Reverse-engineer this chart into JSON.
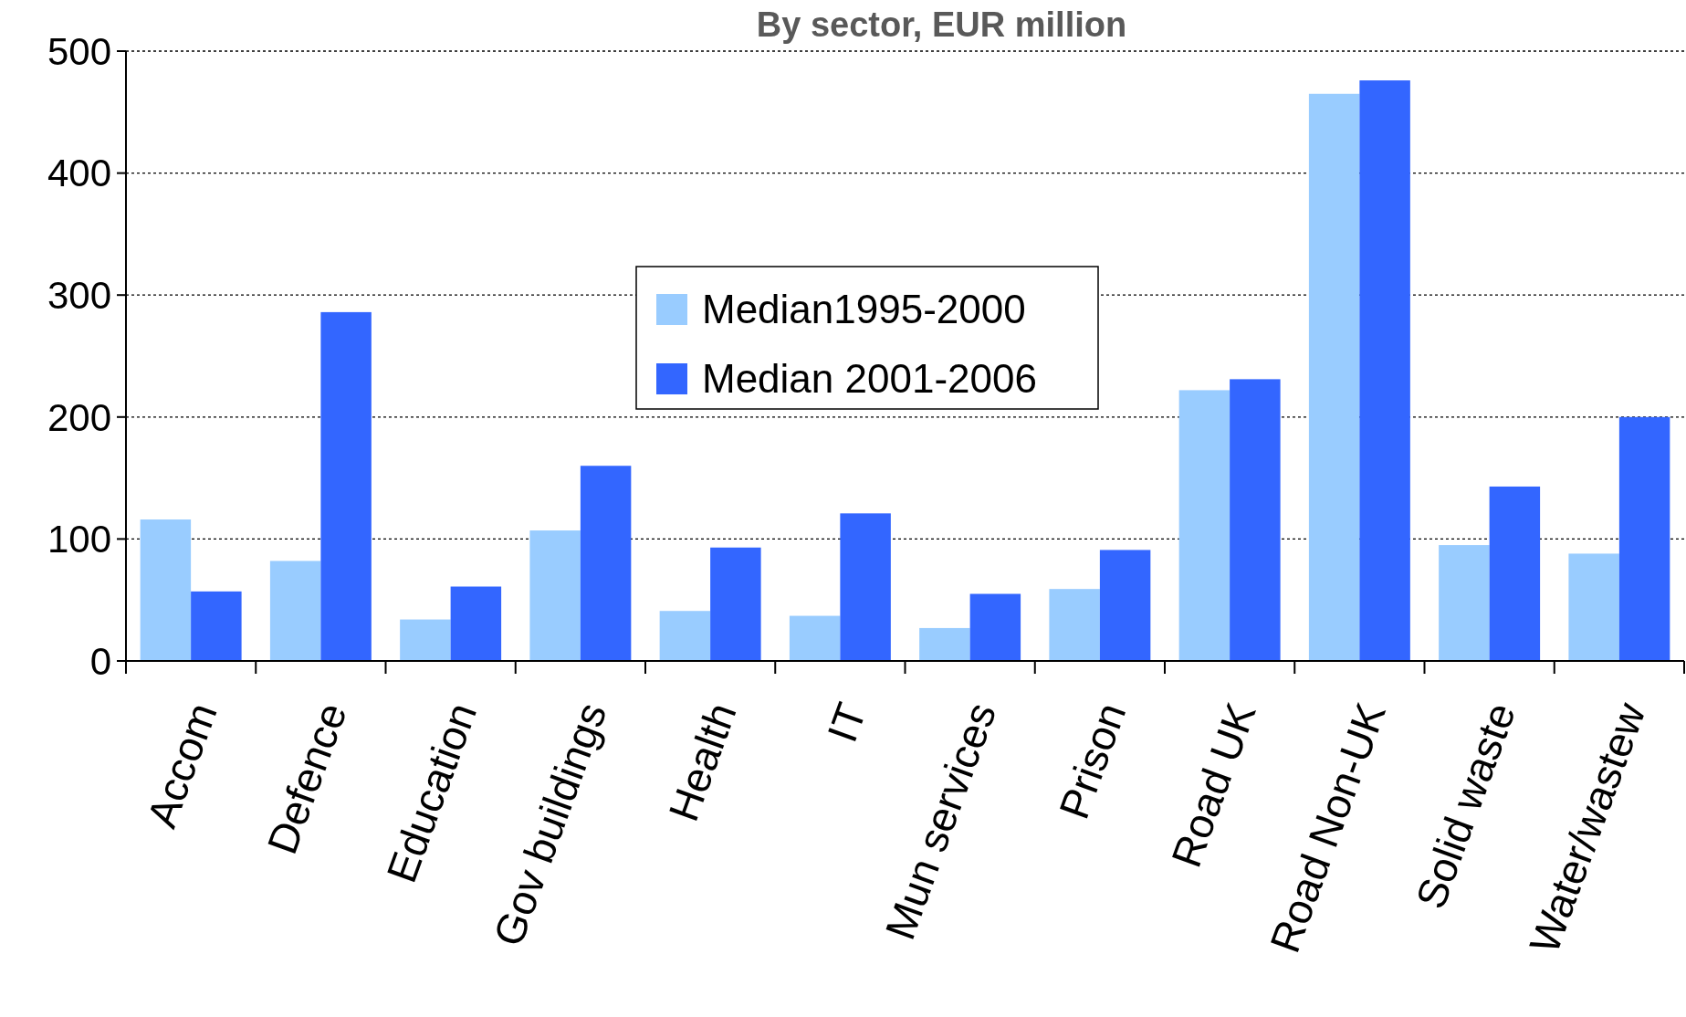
{
  "chart_data": {
    "type": "bar",
    "title": "By sector, EUR million",
    "categories": [
      "Accom",
      "Defence",
      "Education",
      "Gov buildings",
      "Health",
      "IT",
      "Mun services",
      "Prison",
      "Road UK",
      "Road Non-UK",
      "Solid waste",
      "Water/wastew"
    ],
    "series": [
      {
        "name": "Median1995-2000",
        "color": "#99ccff",
        "values": [
          116,
          82,
          34,
          107,
          41,
          37,
          27,
          59,
          222,
          465,
          95,
          88
        ]
      },
      {
        "name": "Median 2001-2006",
        "color": "#3366ff",
        "values": [
          57,
          286,
          61,
          160,
          93,
          121,
          55,
          91,
          231,
          476,
          143,
          200
        ]
      }
    ],
    "ylim": [
      0,
      500
    ],
    "yticks": [
      0,
      100,
      200,
      300,
      400,
      500
    ],
    "grid": "y",
    "legend": "top"
  }
}
